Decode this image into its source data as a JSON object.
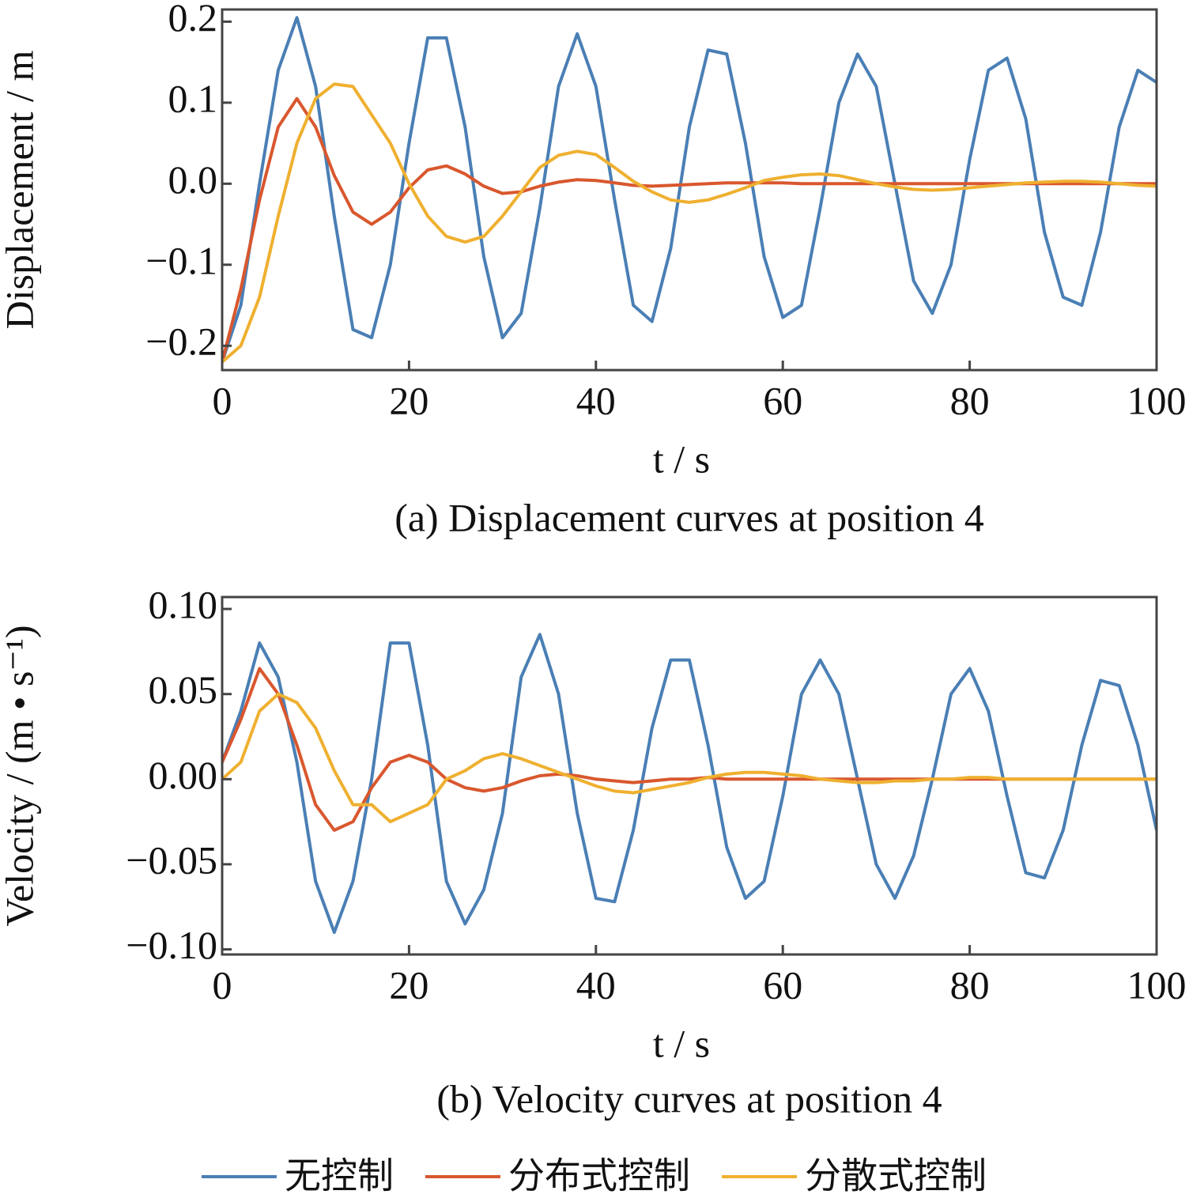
{
  "chart_data": [
    {
      "type": "line",
      "caption": "(a)  Displacement curves at position 4",
      "xlabel": "t / s",
      "ylabel": "Displacement / m",
      "x": [
        0,
        2,
        4,
        6,
        8,
        10,
        12,
        14,
        16,
        18,
        20,
        22,
        24,
        26,
        28,
        30,
        32,
        34,
        36,
        38,
        40,
        42,
        44,
        46,
        48,
        50,
        52,
        54,
        56,
        58,
        60,
        62,
        64,
        66,
        68,
        70,
        72,
        74,
        76,
        78,
        80,
        82,
        84,
        86,
        88,
        90,
        92,
        94,
        96,
        98,
        100
      ],
      "xlim": [
        0,
        100
      ],
      "xticks": [
        0,
        20,
        40,
        60,
        80,
        100
      ],
      "ylim": [
        -0.23,
        0.215
      ],
      "yticks": [
        {
          "value": -0.2,
          "label": "−0.2"
        },
        {
          "value": -0.1,
          "label": "−0.1"
        },
        {
          "value": 0,
          "label": "0.0"
        },
        0.1,
        0.2
      ],
      "grid": false,
      "series": [
        {
          "color": "#4a7fb5",
          "values": [
            -0.22,
            -0.15,
            0.0,
            0.14,
            0.205,
            0.12,
            -0.04,
            -0.18,
            -0.19,
            -0.1,
            0.05,
            0.18,
            0.18,
            0.07,
            -0.09,
            -0.19,
            -0.16,
            -0.03,
            0.12,
            0.185,
            0.12,
            -0.02,
            -0.15,
            -0.17,
            -0.08,
            0.07,
            0.165,
            0.16,
            0.05,
            -0.09,
            -0.165,
            -0.15,
            -0.03,
            0.1,
            0.16,
            0.12,
            0.0,
            -0.12,
            -0.16,
            -0.1,
            0.03,
            0.14,
            0.155,
            0.08,
            -0.06,
            -0.14,
            -0.15,
            -0.06,
            0.07,
            0.14,
            0.125
          ]
        },
        {
          "color": "#d9572e",
          "values": [
            -0.22,
            -0.13,
            -0.02,
            0.07,
            0.105,
            0.07,
            0.01,
            -0.035,
            -0.05,
            -0.035,
            -0.005,
            0.017,
            0.022,
            0.012,
            -0.003,
            -0.012,
            -0.01,
            -0.003,
            0.002,
            0.005,
            0.004,
            0.001,
            -0.002,
            -0.003,
            -0.002,
            -0.001,
            0.0,
            0.001,
            0.001,
            0.001,
            0.001,
            0.0,
            0.0,
            0.0,
            0.0,
            0.0,
            0.0,
            0.0,
            0.0,
            0.0,
            0.0,
            0.0,
            0.0,
            0.0,
            0.0,
            0.0,
            0.0,
            0.0,
            0.0,
            0.0,
            0.0
          ]
        },
        {
          "color": "#efb030",
          "values": [
            -0.22,
            -0.2,
            -0.14,
            -0.04,
            0.05,
            0.105,
            0.123,
            0.12,
            0.085,
            0.05,
            0.0,
            -0.04,
            -0.065,
            -0.072,
            -0.065,
            -0.04,
            -0.01,
            0.02,
            0.035,
            0.04,
            0.036,
            0.02,
            0.003,
            -0.01,
            -0.02,
            -0.023,
            -0.02,
            -0.013,
            -0.005,
            0.004,
            0.008,
            0.011,
            0.012,
            0.01,
            0.005,
            0.0,
            -0.004,
            -0.007,
            -0.008,
            -0.007,
            -0.005,
            -0.003,
            -0.001,
            0.001,
            0.002,
            0.003,
            0.003,
            0.002,
            0.0,
            -0.002,
            -0.003
          ]
        }
      ]
    },
    {
      "type": "line",
      "caption": "(b)  Velocity curves at position 4",
      "xlabel": "t / s",
      "ylabel": "Velocity / (m • s⁻¹)",
      "x": [
        0,
        2,
        4,
        6,
        8,
        10,
        12,
        14,
        16,
        18,
        20,
        22,
        24,
        26,
        28,
        30,
        32,
        34,
        36,
        38,
        40,
        42,
        44,
        46,
        48,
        50,
        52,
        54,
        56,
        58,
        60,
        62,
        64,
        66,
        68,
        70,
        72,
        74,
        76,
        78,
        80,
        82,
        84,
        86,
        88,
        90,
        92,
        94,
        96,
        98,
        100
      ],
      "xlim": [
        0,
        100
      ],
      "xticks": [
        0,
        20,
        40,
        60,
        80,
        100
      ],
      "ylim": [
        -0.103,
        0.107
      ],
      "yticks": [
        {
          "value": -0.1,
          "label": "−0.10"
        },
        {
          "value": -0.05,
          "label": "−0.05"
        },
        {
          "value": 0,
          "label": "0.00"
        },
        0.05,
        {
          "value": 0.1,
          "label": "0.10"
        }
      ],
      "grid": false,
      "legend": "bottom",
      "series": [
        {
          "name": "无控制",
          "color": "#4a7fb5",
          "values": [
            0.01,
            0.04,
            0.08,
            0.06,
            0.01,
            -0.06,
            -0.09,
            -0.06,
            0.0,
            0.08,
            0.08,
            0.02,
            -0.06,
            -0.085,
            -0.065,
            -0.02,
            0.06,
            0.085,
            0.05,
            -0.02,
            -0.07,
            -0.072,
            -0.03,
            0.03,
            0.07,
            0.07,
            0.02,
            -0.04,
            -0.07,
            -0.06,
            -0.01,
            0.05,
            0.07,
            0.05,
            0.0,
            -0.05,
            -0.07,
            -0.045,
            0.0,
            0.05,
            0.065,
            0.04,
            -0.01,
            -0.055,
            -0.058,
            -0.03,
            0.02,
            0.058,
            0.055,
            0.02,
            -0.03
          ]
        },
        {
          "name": "分布式控制",
          "color": "#d9572e",
          "values": [
            0.01,
            0.035,
            0.065,
            0.05,
            0.02,
            -0.015,
            -0.03,
            -0.025,
            -0.005,
            0.01,
            0.014,
            0.01,
            0.0,
            -0.005,
            -0.007,
            -0.005,
            -0.001,
            0.002,
            0.003,
            0.002,
            0.0,
            -0.001,
            -0.002,
            -0.001,
            0.0,
            0.0,
            0.001,
            0.0,
            0.0,
            0.0,
            0.0,
            0.0,
            0.0,
            0.0,
            0.0,
            0.0,
            0.0,
            0.0,
            0.0,
            0.0,
            0.0,
            0.0,
            0.0,
            0.0,
            0.0,
            0.0,
            0.0,
            0.0,
            0.0,
            0.0,
            0.0
          ]
        },
        {
          "name": "分散式控制",
          "color": "#efb030",
          "values": [
            0.0,
            0.01,
            0.04,
            0.05,
            0.045,
            0.03,
            0.005,
            -0.015,
            -0.015,
            -0.025,
            -0.02,
            -0.015,
            0.0,
            0.005,
            0.012,
            0.015,
            0.012,
            0.008,
            0.004,
            0.0,
            -0.004,
            -0.007,
            -0.008,
            -0.006,
            -0.004,
            -0.002,
            0.001,
            0.003,
            0.004,
            0.004,
            0.003,
            0.002,
            0.0,
            -0.001,
            -0.002,
            -0.002,
            -0.001,
            -0.001,
            0.0,
            0.0,
            0.001,
            0.001,
            0.0,
            0.0,
            0.0,
            0.0,
            0.0,
            0.0,
            0.0,
            0.0,
            0.0
          ]
        }
      ]
    }
  ]
}
